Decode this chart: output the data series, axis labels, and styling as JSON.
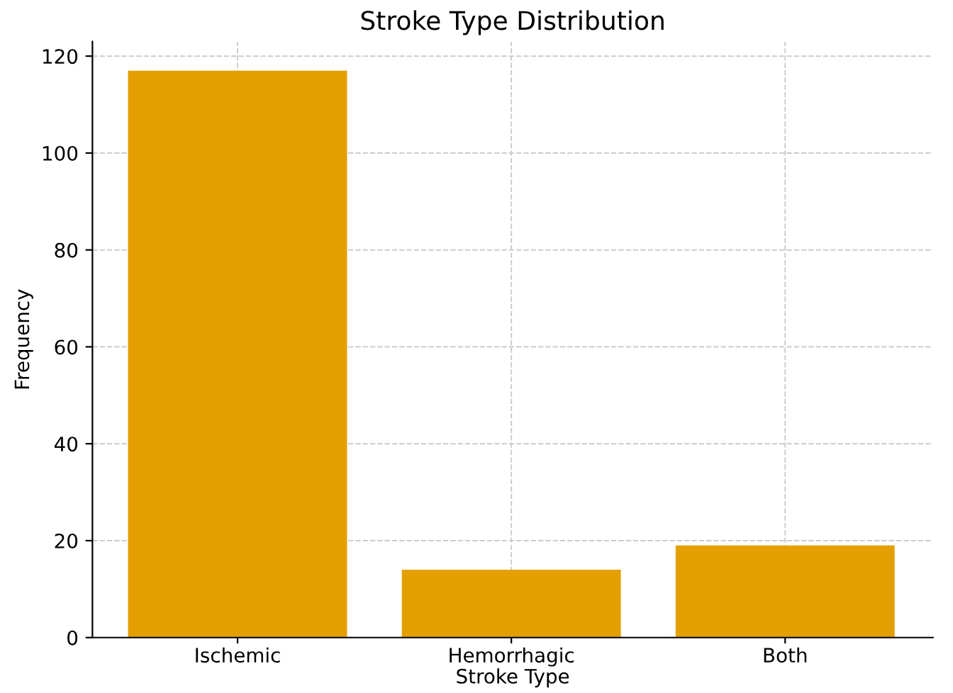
{
  "chart_data": {
    "type": "bar",
    "title": "Stroke Type Distribution",
    "xlabel": "Stroke Type",
    "ylabel": "Frequency",
    "categories": [
      "Ischemic",
      "Hemorrhagic",
      "Both"
    ],
    "values": [
      117,
      14,
      19
    ],
    "color": "#e3a000",
    "ylim": [
      0,
      123
    ],
    "yticks": [
      0,
      20,
      40,
      60,
      80,
      100,
      120
    ],
    "grid": true
  }
}
